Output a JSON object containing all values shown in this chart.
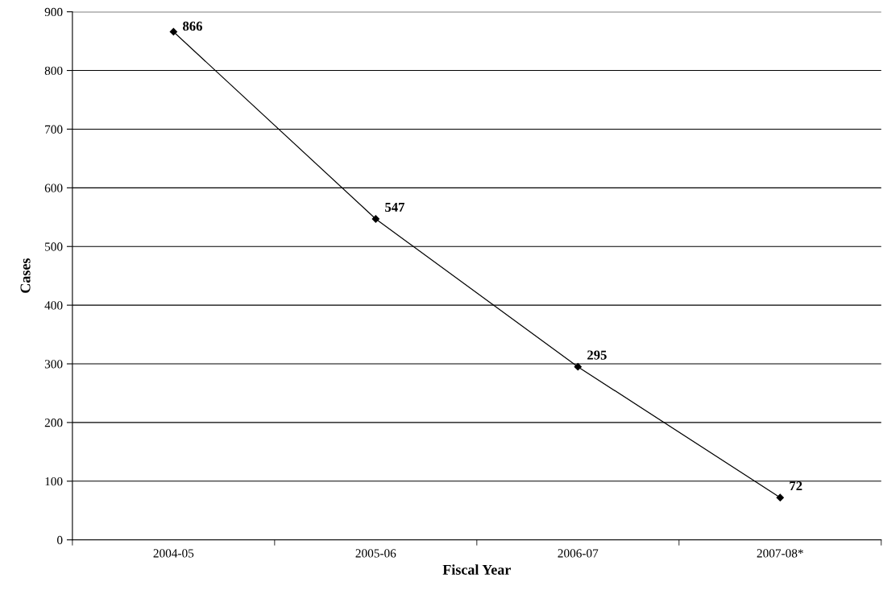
{
  "chart_data": {
    "type": "line",
    "xlabel": "Fiscal Year",
    "ylabel": "Cases",
    "categories": [
      "2004-05",
      "2005-06",
      "2006-07",
      "2007-08*"
    ],
    "series": [
      {
        "color": "#000000",
        "values": [
          866,
          547,
          295,
          72
        ]
      }
    ],
    "ylim": [
      0,
      900
    ],
    "yticks": [
      0,
      100,
      200,
      300,
      400,
      500,
      600,
      700,
      800,
      900
    ],
    "grid": "y",
    "marker": "diamond",
    "line_style": "solid",
    "data_labels": true,
    "legend": false
  }
}
